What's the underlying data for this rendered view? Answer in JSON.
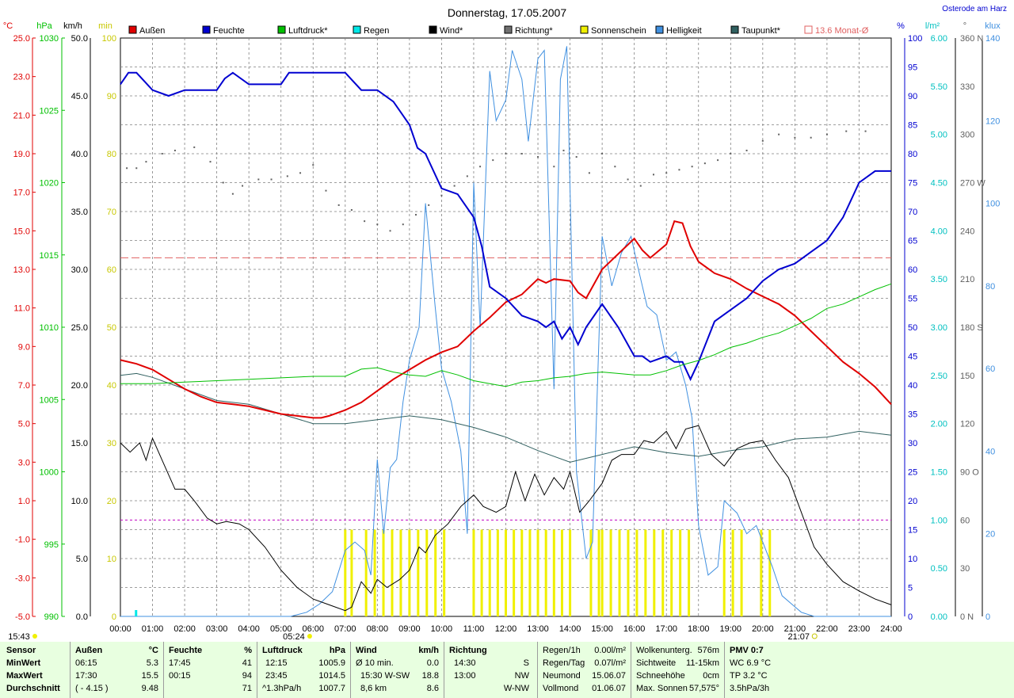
{
  "page": {
    "title": "Donnerstag, 17.05.2007",
    "location": "Osterode am Harz"
  },
  "legend": [
    {
      "label": "Außen",
      "color": "#e00000"
    },
    {
      "label": "Feuchte",
      "color": "#0000d0"
    },
    {
      "label": "Luftdruck*",
      "color": "#00c000"
    },
    {
      "label": "Regen",
      "color": "#00e8e8"
    },
    {
      "label": "Wind*",
      "color": "#000000"
    },
    {
      "label": "Richtung*",
      "color": "#707070"
    },
    {
      "label": "Sonnenschein",
      "color": "#f0f000"
    },
    {
      "label": "Helligkeit",
      "color": "#4090e0"
    },
    {
      "label": "Taupunkt*",
      "color": "#306060"
    },
    {
      "label": "13.6 Monat-Ø",
      "color": "#e06060"
    }
  ],
  "axes": {
    "temp_unit": "°C",
    "hpa_unit": "hPa",
    "wind_unit": "km/h",
    "min_unit": "min",
    "hum_unit": "%",
    "rain_unit": "l/m²",
    "dir_unit": "°",
    "lux_unit": "klux",
    "temp_ticks": [
      "25.0",
      "23.0",
      "21.0",
      "19.0",
      "17.0",
      "15.0",
      "13.0",
      "11.0",
      "9.0",
      "7.0",
      "5.0",
      "3.0",
      "1.0",
      "-1.0",
      "-3.0",
      "-5.0"
    ],
    "hpa_ticks": [
      {
        "v": 1030,
        "t": "1030"
      },
      {
        "v": 1025,
        "t": "1025"
      },
      {
        "v": 1020,
        "t": "1020"
      },
      {
        "v": 1015,
        "t": "1015"
      },
      {
        "v": 1010,
        "t": "1010"
      },
      {
        "v": 1005,
        "t": "1005"
      },
      {
        "v": 1000,
        "t": "1000"
      },
      {
        "v": 995,
        "t": "995"
      },
      {
        "v": 990,
        "t": "990"
      }
    ],
    "wind_ticks": [
      "50.0",
      "45.0",
      "40.0",
      "35.0",
      "30.0",
      "25.0",
      "20.0",
      "15.0",
      "10.0",
      "5.0",
      "0.0"
    ],
    "min_ticks": [
      "100",
      "90",
      "80",
      "70",
      "60",
      "50",
      "40",
      "30",
      "20",
      "10",
      "0"
    ],
    "hum_ticks": [
      "100",
      "95",
      "90",
      "85",
      "80",
      "75",
      "70",
      "65",
      "60",
      "55",
      "50",
      "45",
      "40",
      "35",
      "30",
      "25",
      "20",
      "15",
      "10",
      "5",
      "0"
    ],
    "rain_ticks": [
      "6.00",
      "5.50",
      "5.00",
      "4.50",
      "4.00",
      "3.50",
      "3.00",
      "2.50",
      "2.00",
      "1.50",
      "1.00",
      "0.50",
      "0.00"
    ],
    "dir_ticks": [
      {
        "v": 360,
        "t": "360 N"
      },
      {
        "v": 330,
        "t": "330"
      },
      {
        "v": 300,
        "t": "300"
      },
      {
        "v": 270,
        "t": "270 W"
      },
      {
        "v": 240,
        "t": "240"
      },
      {
        "v": 210,
        "t": "210"
      },
      {
        "v": 180,
        "t": "180 S"
      },
      {
        "v": 150,
        "t": "150"
      },
      {
        "v": 120,
        "t": "120"
      },
      {
        "v": 90,
        "t": "90  O"
      },
      {
        "v": 60,
        "t": "60"
      },
      {
        "v": 30,
        "t": "30"
      },
      {
        "v": 0,
        "t": "0   N"
      }
    ],
    "lux_ticks": [
      "140",
      "120",
      "100",
      "80",
      "60",
      "40",
      "20",
      "0"
    ],
    "time_ticks": [
      "00:00",
      "01:00",
      "02:00",
      "03:00",
      "04:00",
      "05:00",
      "06:00",
      "07:00",
      "08:00",
      "09:00",
      "10:00",
      "11:00",
      "12:00",
      "13:00",
      "14:00",
      "15:00",
      "16:00",
      "17:00",
      "18:00",
      "19:00",
      "20:00",
      "21:00",
      "22:00",
      "23:00",
      "24:00"
    ],
    "moonset": "15:43",
    "sunrise": "05:24",
    "sunset": "21:07"
  },
  "table": {
    "sensor": {
      "header": "Sensor",
      "rows": [
        "MinWert",
        "MaxWert",
        "Durchschnitt"
      ]
    },
    "aussen": {
      "header": "Außen",
      "unit": "°C",
      "rows": [
        [
          "06:15",
          "5.3"
        ],
        [
          "17:30",
          "15.5"
        ],
        [
          "( - 4.15 )",
          "9.48"
        ]
      ]
    },
    "feuchte": {
      "header": "Feuchte",
      "unit": "%",
      "rows": [
        [
          "17:45",
          "41"
        ],
        [
          "00:15",
          "94"
        ],
        [
          "",
          "71"
        ]
      ]
    },
    "luftdruck": {
      "header": "Luftdruck",
      "unit": "hPa",
      "rows": [
        [
          "12:15",
          "1005.9"
        ],
        [
          "23:45",
          "1014.5"
        ],
        [
          "^1.3hPa/h",
          "1007.7"
        ]
      ]
    },
    "wind": {
      "header": "Wind",
      "unit": "km/h",
      "rows": [
        [
          "Ø 10 min.",
          "0.0"
        ],
        [
          "15:30  W-SW",
          "18.8"
        ],
        [
          "8,6 km",
          "8.6"
        ]
      ]
    },
    "richtung": {
      "header": "Richtung",
      "rows": [
        [
          "14:30",
          "S"
        ],
        [
          "13:00",
          "NW"
        ],
        [
          "",
          "W-NW"
        ]
      ]
    },
    "regen": {
      "rows": [
        [
          "Regen/1h",
          "0.00l/m²"
        ],
        [
          "Regen/Tag",
          "0.07l/m²"
        ],
        [
          "Neumond",
          "15.06.07"
        ],
        [
          "Vollmond",
          "01.06.07"
        ]
      ]
    },
    "wolken": {
      "rows": [
        [
          "Wolkenunterg.",
          "576m"
        ],
        [
          "Sichtweite",
          "11-15km"
        ],
        [
          "Schneehöhe",
          "0cm"
        ],
        [
          "Max. Sonnen",
          "57,575°"
        ]
      ]
    },
    "pmv": {
      "rows": [
        "PMV 0:7",
        "WC 6.9 °C",
        "TP 3.2 °C",
        "3.5hPa/3h"
      ]
    }
  },
  "chart_data": {
    "type": "line",
    "title": "Donnerstag, 17.05.2007",
    "x_unit": "hours",
    "series": [
      {
        "name": "Außen",
        "axis": "°C",
        "color": "#e00000",
        "x": [
          0,
          0.5,
          1,
          1.5,
          2,
          2.5,
          3,
          3.5,
          4,
          4.5,
          5,
          5.5,
          6,
          6.25,
          6.5,
          7,
          7.5,
          8,
          8.5,
          9,
          9.5,
          10,
          10.5,
          11,
          11.5,
          12,
          12.5,
          13,
          13.25,
          13.5,
          14,
          14.25,
          14.5,
          15,
          15.5,
          16,
          16.25,
          16.5,
          17,
          17.25,
          17.5,
          17.75,
          18,
          18.5,
          19,
          19.5,
          20,
          20.5,
          21,
          21.5,
          22,
          22.5,
          23,
          23.5,
          24
        ],
        "y": [
          8.3,
          8.1,
          7.8,
          7.3,
          6.8,
          6.4,
          6.1,
          6.0,
          5.9,
          5.7,
          5.5,
          5.4,
          5.3,
          5.3,
          5.4,
          5.7,
          6.1,
          6.7,
          7.3,
          7.8,
          8.3,
          8.7,
          9.0,
          9.8,
          10.5,
          11.3,
          11.7,
          12.5,
          12.3,
          12.5,
          12.4,
          11.8,
          11.5,
          13.0,
          13.8,
          14.6,
          14.0,
          13.6,
          14.3,
          15.5,
          15.4,
          14.2,
          13.4,
          12.8,
          12.5,
          12.0,
          11.6,
          11.2,
          10.6,
          9.8,
          9.0,
          8.2,
          7.6,
          6.9,
          6.0
        ]
      },
      {
        "name": "Feuchte",
        "axis": "%",
        "color": "#0000d0",
        "x": [
          0,
          0.25,
          0.5,
          1,
          1.5,
          2,
          2.5,
          3,
          3.25,
          3.5,
          4,
          4.5,
          5,
          5.25,
          5.5,
          6,
          6.5,
          7,
          7.5,
          8,
          8.5,
          9,
          9.25,
          9.5,
          10,
          10.5,
          11,
          11.25,
          11.5,
          12,
          12.5,
          13,
          13.25,
          13.5,
          13.75,
          14,
          14.25,
          14.5,
          15,
          15.5,
          16,
          16.25,
          16.5,
          17,
          17.25,
          17.5,
          17.75,
          18,
          18.5,
          19,
          19.5,
          20,
          20.5,
          21,
          21.5,
          22,
          22.5,
          23,
          23.5,
          24
        ],
        "y": [
          92,
          94,
          94,
          91,
          90,
          91,
          91,
          91,
          93,
          94,
          92,
          92,
          92,
          94,
          94,
          94,
          94,
          94,
          91,
          91,
          89,
          85,
          81,
          80,
          74,
          73,
          69,
          64,
          57,
          55,
          52,
          51,
          50,
          51,
          48,
          50,
          47,
          50,
          54,
          50,
          45,
          45,
          44,
          45,
          44,
          44,
          41,
          44,
          51,
          53,
          55,
          58,
          60,
          61,
          63,
          65,
          69,
          75,
          77,
          77
        ]
      },
      {
        "name": "Luftdruck*",
        "axis": "hPa",
        "color": "#00c000",
        "x": [
          0,
          1,
          2,
          3,
          4,
          5,
          6,
          7,
          7.5,
          8,
          8.5,
          9,
          9.5,
          10,
          10.5,
          11,
          11.5,
          12,
          12.5,
          13,
          13.5,
          14,
          14.5,
          15,
          15.5,
          16,
          16.5,
          17,
          17.5,
          18,
          18.5,
          19,
          19.5,
          20,
          20.5,
          21,
          21.5,
          22,
          22.5,
          23,
          23.5,
          24
        ],
        "y": [
          1006.1,
          1006.1,
          1006.2,
          1006.3,
          1006.4,
          1006.5,
          1006.6,
          1006.6,
          1007.1,
          1007.2,
          1006.9,
          1006.7,
          1006.6,
          1007.0,
          1006.7,
          1006.3,
          1006.1,
          1005.9,
          1006.2,
          1006.3,
          1006.5,
          1006.6,
          1006.8,
          1006.9,
          1006.8,
          1006.7,
          1006.7,
          1007.0,
          1007.4,
          1007.7,
          1008.1,
          1008.6,
          1008.9,
          1009.3,
          1009.6,
          1010.1,
          1010.6,
          1011.3,
          1011.6,
          1012.1,
          1012.6,
          1013.0
        ]
      }
    ]
  }
}
